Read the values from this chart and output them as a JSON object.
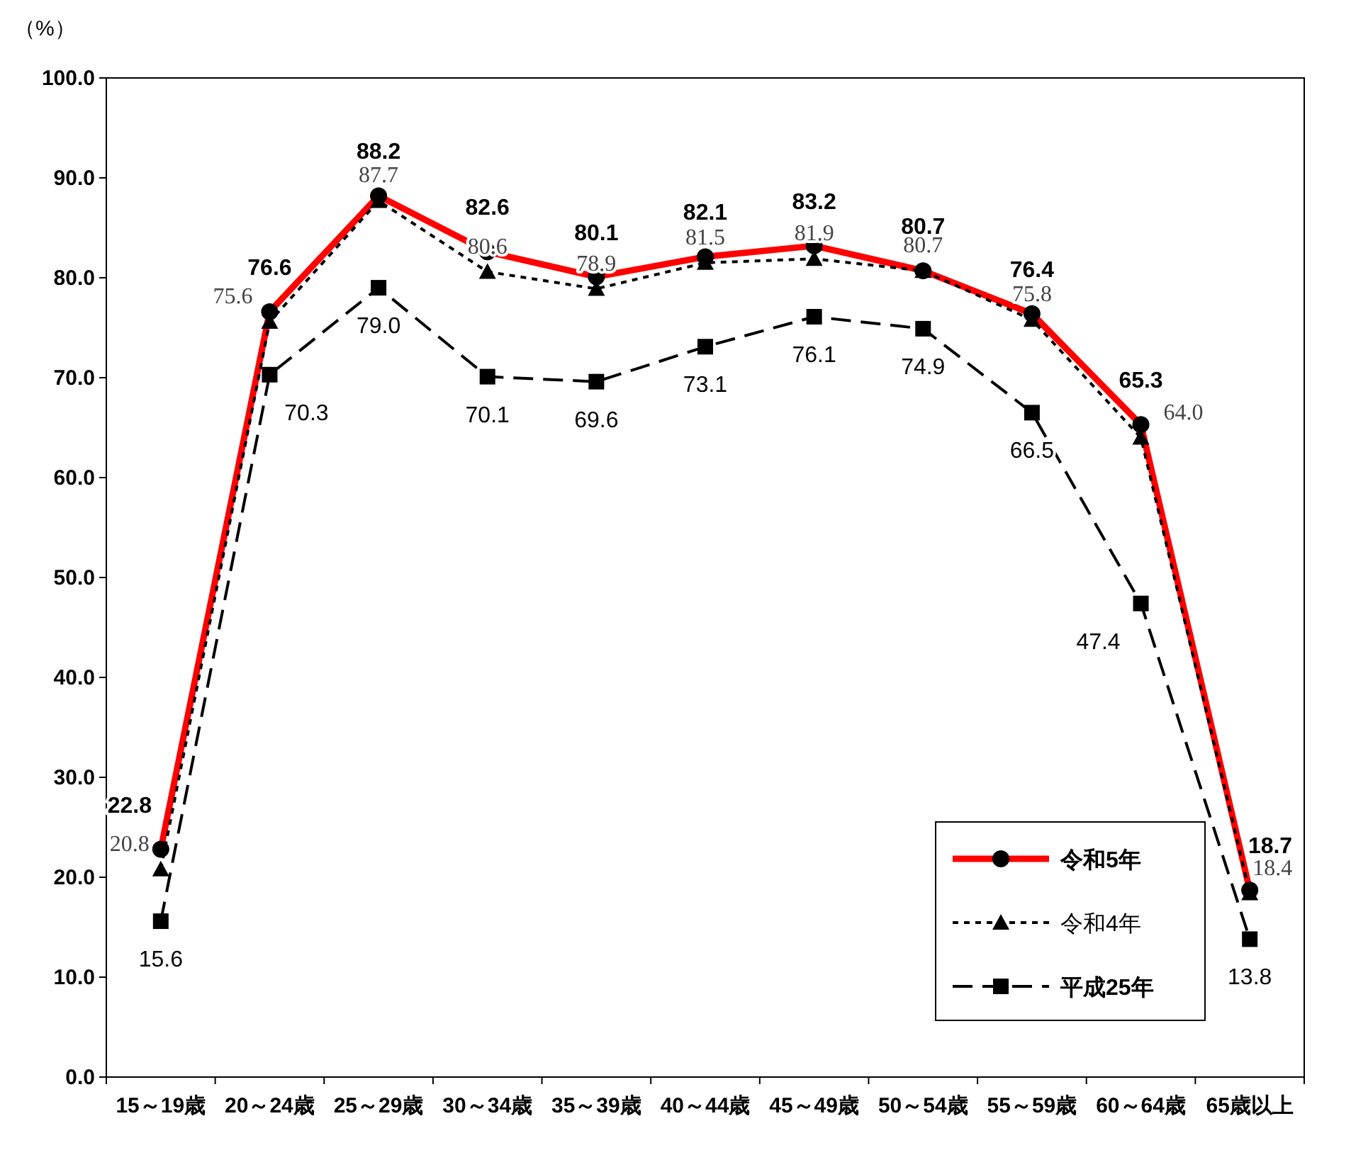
{
  "chart_data": {
    "type": "line",
    "ylabel": "（%）",
    "categories": [
      "15～19歳",
      "20～24歳",
      "25～29歳",
      "30～34歳",
      "35～39歳",
      "40～44歳",
      "45～49歳",
      "50～54歳",
      "55～59歳",
      "60～64歳",
      "65歳以上"
    ],
    "series": [
      {
        "name": "令和5年",
        "color": "#ff0000",
        "marker": "circle",
        "line_style": "solid",
        "values": [
          22.8,
          76.6,
          88.2,
          82.6,
          80.1,
          82.1,
          83.2,
          80.7,
          76.4,
          65.3,
          18.7
        ],
        "value_labels": [
          "22.8",
          "76.6",
          "88.2",
          "82.6",
          "80.1",
          "82.1",
          "83.2",
          "80.7",
          "76.4",
          "65.3",
          "18.7"
        ]
      },
      {
        "name": "令和4年",
        "color": "#000000",
        "marker": "triangle",
        "line_style": "dotted",
        "values": [
          20.8,
          75.6,
          87.7,
          80.6,
          78.9,
          81.5,
          81.9,
          80.7,
          75.8,
          64.0,
          18.4
        ],
        "value_labels": [
          "20.8",
          "75.6",
          "87.7",
          "80.6",
          "78.9",
          "81.5",
          "81.9",
          "80.7",
          "75.8",
          "64.0",
          "18.4"
        ]
      },
      {
        "name": "平成25年",
        "color": "#000000",
        "marker": "square",
        "line_style": "dashed",
        "values": [
          15.6,
          70.3,
          79.0,
          70.1,
          69.6,
          73.1,
          76.1,
          74.9,
          66.5,
          47.4,
          13.8
        ],
        "value_labels": [
          "15.6",
          "70.3",
          "79.0",
          "70.1",
          "69.6",
          "73.1",
          "76.1",
          "74.9",
          "66.5",
          "47.4",
          "13.8"
        ]
      }
    ],
    "ylim": [
      0,
      100
    ],
    "yticks": [
      {
        "value": 0,
        "label": "0.0"
      },
      {
        "value": 10,
        "label": "10.0"
      },
      {
        "value": 20,
        "label": "20.0"
      },
      {
        "value": 30,
        "label": "30.0"
      },
      {
        "value": 40,
        "label": "40.0"
      },
      {
        "value": 50,
        "label": "50.0"
      },
      {
        "value": 60,
        "label": "60.0"
      },
      {
        "value": 70,
        "label": "70.0"
      },
      {
        "value": 80,
        "label": "80.0"
      },
      {
        "value": 90,
        "label": "90.0"
      },
      {
        "value": 100,
        "label": "100.0"
      }
    ],
    "legend": "bottom right",
    "grid": false
  }
}
